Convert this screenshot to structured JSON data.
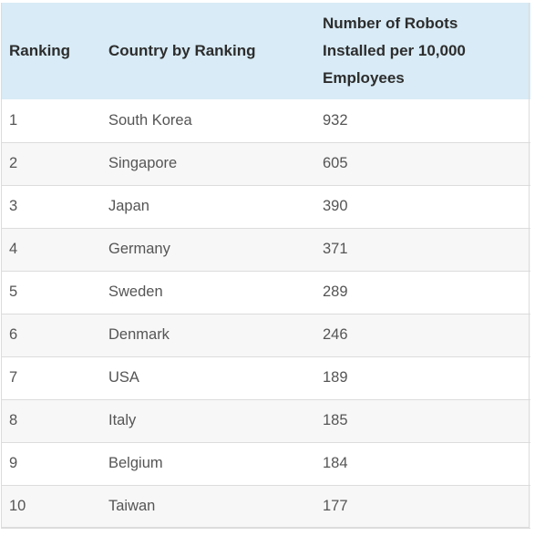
{
  "table": {
    "headers": [
      "Ranking",
      "Country by Ranking",
      "Number of Robots Installed per 10,000 Employees"
    ],
    "rows": [
      [
        "1",
        "South Korea",
        "932"
      ],
      [
        "2",
        "Singapore",
        "605"
      ],
      [
        "3",
        "Japan",
        "390"
      ],
      [
        "4",
        "Germany",
        "371"
      ],
      [
        "5",
        "Sweden",
        "289"
      ],
      [
        "6",
        "Denmark",
        "246"
      ],
      [
        "7",
        "USA",
        "189"
      ],
      [
        "8",
        "Italy",
        "185"
      ],
      [
        "9",
        "Belgium",
        "184"
      ],
      [
        "10",
        "Taiwan",
        "177"
      ]
    ]
  }
}
